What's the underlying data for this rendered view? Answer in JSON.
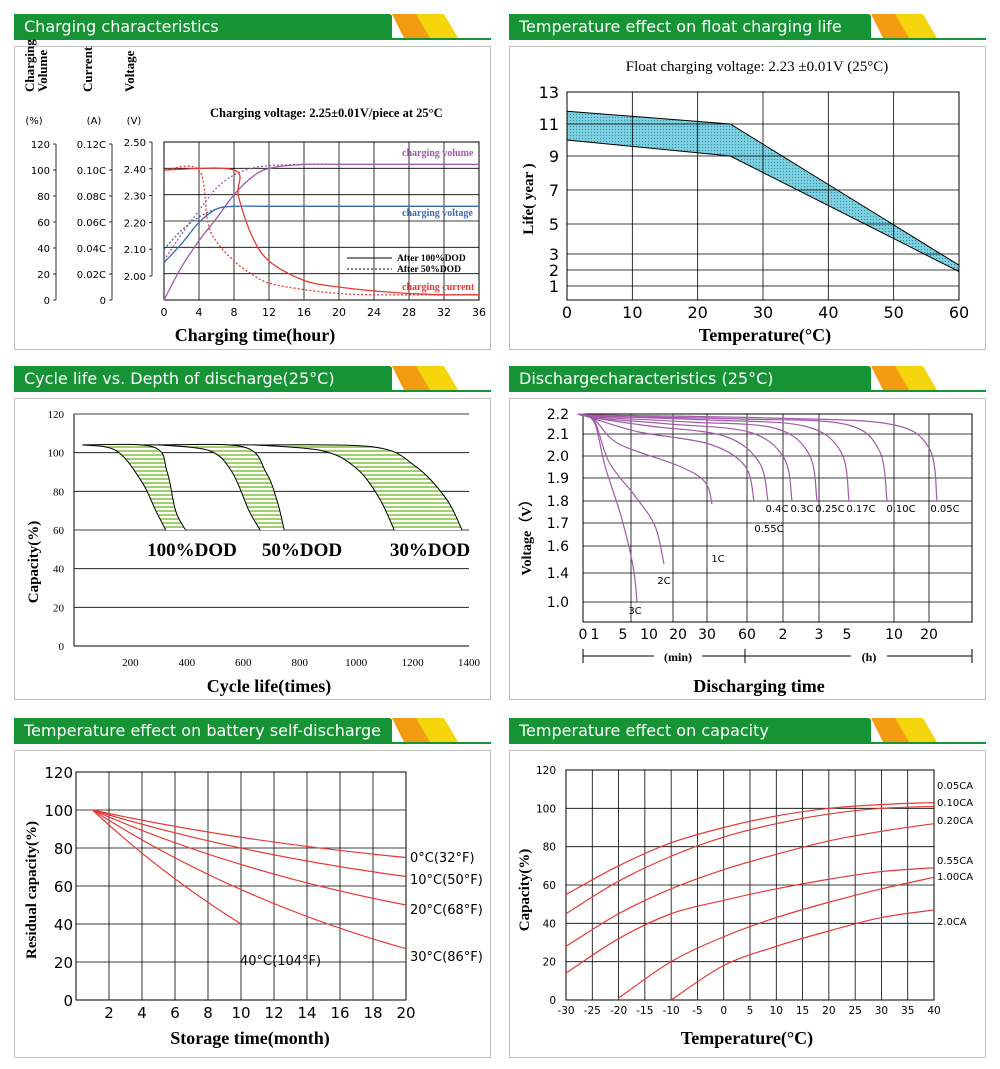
{
  "panels": [
    {
      "id": "p1",
      "title": "Charging characteristics"
    },
    {
      "id": "p2",
      "title": "Temperature effect on float charging life"
    },
    {
      "id": "p3",
      "title": "Cycle life vs. Depth of discharge(25°C)"
    },
    {
      "id": "p4",
      "title": "Dischargecharacteristics (25°C)"
    },
    {
      "id": "p5",
      "title": "Temperature effect on battery self-discharge"
    },
    {
      "id": "p6",
      "title": "Temperature effect on capacity"
    }
  ],
  "colors": {
    "header_green": "#169334",
    "accent_orange": "#f39c12",
    "accent_yellow": "#f6d50c",
    "curve_red": "#e53935",
    "curve_purple": "#a05aa8",
    "curve_blue": "#3a6db5",
    "band_cyan": "#7fd0e0",
    "band_green": "#8bc34a"
  },
  "chart_data": [
    {
      "type": "line",
      "title": "Charging voltage:  2.25±0.01V/piece at 25°C",
      "xlabel": "Charging time(hour)",
      "ylabel_groups": [
        {
          "label": "Charging Volume",
          "unit": "(%)",
          "ticks": [
            "120",
            "100",
            "80",
            "60",
            "40",
            "20",
            "0"
          ]
        },
        {
          "label": "Current",
          "unit": "(A)",
          "ticks": [
            "0.12C",
            "0.10C",
            "0.08C",
            "0.06C",
            "0.04C",
            "0.02C",
            "0"
          ]
        },
        {
          "label": "Voltage",
          "unit": "(V)",
          "ticks": [
            "2.50",
            "2.40",
            "2.30",
            "2.20",
            "2.10",
            "2.00"
          ]
        }
      ],
      "x_ticks": [
        "0",
        "4",
        "8",
        "12",
        "16",
        "20",
        "24",
        "28",
        "32",
        "36"
      ],
      "xlim": [
        0,
        36
      ],
      "series_labels": {
        "volume": "charging volume",
        "voltage": "charging voltage",
        "current": "charging current"
      },
      "legend": [
        "After 100%DOD",
        "After 50%DOD"
      ],
      "series": [
        {
          "name": "charging volume",
          "dod": "100%",
          "x": [
            0,
            2,
            4,
            6,
            8,
            10,
            12,
            16,
            20,
            24,
            28,
            32,
            36
          ],
          "y": [
            0,
            25,
            45,
            62,
            80,
            93,
            100,
            103,
            103,
            103,
            103,
            103,
            103
          ]
        },
        {
          "name": "charging volume",
          "dod": "50%",
          "x": [
            0,
            2,
            4,
            6,
            8,
            10,
            12,
            16,
            20,
            24,
            28,
            32,
            36
          ],
          "y": [
            30,
            50,
            68,
            85,
            95,
            100,
            102,
            103,
            103,
            103,
            103,
            103,
            103
          ]
        },
        {
          "name": "charging voltage",
          "dod": "100%",
          "x": [
            0,
            2,
            4,
            6,
            8,
            12,
            16,
            20,
            24,
            28,
            32,
            36
          ],
          "y": [
            2.05,
            2.12,
            2.2,
            2.25,
            2.26,
            2.26,
            2.26,
            2.26,
            2.26,
            2.26,
            2.26,
            2.26
          ]
        },
        {
          "name": "charging voltage",
          "dod": "50%",
          "x": [
            0,
            2,
            4,
            6,
            8,
            12,
            16,
            20,
            24,
            28,
            32,
            36
          ],
          "y": [
            2.1,
            2.17,
            2.22,
            2.25,
            2.26,
            2.26,
            2.26,
            2.26,
            2.26,
            2.26,
            2.26,
            2.26
          ]
        },
        {
          "name": "charging current",
          "dod": "100%",
          "x": [
            0,
            8,
            8.5,
            10,
            12,
            16,
            20,
            24,
            28,
            32,
            36
          ],
          "y": [
            0.1,
            0.1,
            0.08,
            0.05,
            0.03,
            0.015,
            0.01,
            0.007,
            0.005,
            0.004,
            0.004
          ]
        },
        {
          "name": "charging current",
          "dod": "50%",
          "x": [
            0,
            4,
            5,
            6,
            8,
            10,
            12,
            16,
            20,
            24,
            28,
            32,
            36
          ],
          "y": [
            0.1,
            0.1,
            0.06,
            0.045,
            0.03,
            0.02,
            0.013,
            0.008,
            0.005,
            0.004,
            0.004,
            0.004,
            0.004
          ]
        }
      ]
    },
    {
      "type": "area",
      "title": "Float charging voltage:  2.23 ±0.01V (25°C)",
      "xlabel": "Temperature(°C)",
      "ylabel": "Life( year )",
      "x_ticks": [
        "0",
        "10",
        "20",
        "30",
        "40",
        "50",
        "60"
      ],
      "y_ticks": [
        "13",
        "11",
        "9",
        "7",
        "5",
        "3",
        "2",
        "1"
      ],
      "xlim": [
        0,
        60
      ],
      "ylim": [
        0,
        13
      ],
      "band": {
        "x": [
          0,
          25,
          60
        ],
        "upper": [
          11.8,
          11.0,
          2.3
        ],
        "lower": [
          10.0,
          9.0,
          1.9
        ]
      }
    },
    {
      "type": "area",
      "xlabel": "Cycle life(times)",
      "ylabel": "Capacity(%)",
      "x_ticks": [
        "200",
        "400",
        "600",
        "800",
        "1000",
        "1200",
        "1400"
      ],
      "y_ticks": [
        "120",
        "100",
        "80",
        "60",
        "40",
        "20",
        "0"
      ],
      "xlim": [
        0,
        1400
      ],
      "ylim": [
        0,
        120
      ],
      "annotations": [
        "100%DOD",
        "50%DOD",
        "30%DOD"
      ],
      "bands": [
        {
          "name": "100%DOD",
          "start": [
            220,
            104
          ],
          "outer": [
            [
              30,
              104
            ],
            [
              280,
              103
            ],
            [
              330,
              90
            ],
            [
              360,
              70
            ],
            [
              395,
              60
            ]
          ],
          "inner": [
            [
              30,
              104
            ],
            [
              150,
              101
            ],
            [
              240,
              85
            ],
            [
              290,
              70
            ],
            [
              325,
              60
            ]
          ]
        },
        {
          "name": "50%DOD",
          "start": [
            560,
            104
          ],
          "outer": [
            [
              300,
              104
            ],
            [
              600,
              103
            ],
            [
              680,
              90
            ],
            [
              720,
              75
            ],
            [
              745,
              60
            ]
          ],
          "inner": [
            [
              300,
              104
            ],
            [
              480,
              101
            ],
            [
              560,
              90
            ],
            [
              620,
              70
            ],
            [
              660,
              60
            ]
          ]
        },
        {
          "name": "30%DOD",
          "start": [
            930,
            104
          ],
          "outer": [
            [
              640,
              104
            ],
            [
              1060,
              103
            ],
            [
              1210,
              93
            ],
            [
              1320,
              76
            ],
            [
              1375,
              60
            ]
          ],
          "inner": [
            [
              640,
              104
            ],
            [
              880,
              101
            ],
            [
              1000,
              92
            ],
            [
              1080,
              77
            ],
            [
              1135,
              60
            ]
          ]
        }
      ]
    },
    {
      "type": "line",
      "xlabel": "Discharging time",
      "ylabel": "Voltage（V）",
      "x_ticks": [
        "0",
        "1",
        "5",
        "10",
        "20",
        "30",
        "60",
        "2",
        "3",
        "5",
        "10",
        "20"
      ],
      "x_units": [
        "(min)",
        "(h)"
      ],
      "y_ticks": [
        "2.2",
        "2.1",
        "2.0",
        "1.9",
        "1.8",
        "1.7",
        "1.6",
        "1.4",
        "1.0"
      ],
      "series": [
        {
          "name": "3C",
          "end_time": "5 min"
        },
        {
          "name": "2C",
          "end_time": "12 min"
        },
        {
          "name": "1C",
          "end_time": "30 min"
        },
        {
          "name": "0.55C",
          "end_time": "~1.4 h"
        },
        {
          "name": "0.4C",
          "end_time": "~1.7 h"
        },
        {
          "name": "0.3C",
          "end_time": "~2.3 h"
        },
        {
          "name": "0.25C",
          "end_time": "~3 h"
        },
        {
          "name": "0.17C",
          "end_time": "~5 h"
        },
        {
          "name": "0.10C",
          "end_time": "10 h"
        },
        {
          "name": "0.05C",
          "end_time": "20 h"
        }
      ]
    },
    {
      "type": "line",
      "xlabel": "Storage time(month)",
      "ylabel": "Residual capacity(%)",
      "x_ticks": [
        "2",
        "4",
        "6",
        "8",
        "10",
        "12",
        "14",
        "16",
        "18",
        "20"
      ],
      "y_ticks": [
        "120",
        "100",
        "80",
        "60",
        "40",
        "20",
        "0"
      ],
      "xlim": [
        0,
        20
      ],
      "ylim": [
        0,
        120
      ],
      "series": [
        {
          "name": "0°C(32°F)",
          "x": [
            1,
            20
          ],
          "y": [
            100,
            75
          ]
        },
        {
          "name": "10°C(50°F)",
          "x": [
            1,
            20
          ],
          "y": [
            100,
            65
          ]
        },
        {
          "name": "20°C(68°F)",
          "x": [
            1,
            20
          ],
          "y": [
            100,
            50
          ]
        },
        {
          "name": "30°C(86°F)",
          "x": [
            1,
            20
          ],
          "y": [
            100,
            27
          ]
        },
        {
          "name": "40°C(104°F)",
          "x": [
            1,
            10
          ],
          "y": [
            100,
            40
          ]
        }
      ]
    },
    {
      "type": "line",
      "xlabel": "Temperature(°C)",
      "ylabel": "Capacity(%)",
      "x_ticks": [
        "-30",
        "-25",
        "-20",
        "-15",
        "-10",
        "-5",
        "0",
        "5",
        "10",
        "15",
        "20",
        "25",
        "30",
        "35",
        "40"
      ],
      "y_ticks": [
        "120",
        "100",
        "80",
        "60",
        "40",
        "20",
        "0"
      ],
      "xlim": [
        -30,
        40
      ],
      "ylim": [
        0,
        120
      ],
      "series": [
        {
          "name": "0.05CA",
          "x": [
            -30,
            -20,
            -10,
            0,
            10,
            20,
            30,
            40
          ],
          "y": [
            55,
            70,
            82,
            90,
            96,
            100,
            102,
            103
          ]
        },
        {
          "name": "0.10CA",
          "x": [
            -30,
            -20,
            -10,
            0,
            10,
            20,
            30,
            40
          ],
          "y": [
            45,
            62,
            75,
            85,
            92,
            97,
            100,
            101
          ]
        },
        {
          "name": "0.20CA",
          "x": [
            -30,
            -20,
            -10,
            0,
            10,
            20,
            30,
            40
          ],
          "y": [
            28,
            45,
            58,
            68,
            76,
            83,
            88,
            92
          ]
        },
        {
          "name": "0.55CA",
          "x": [
            -30,
            -20,
            -10,
            0,
            10,
            20,
            30,
            40
          ],
          "y": [
            14,
            32,
            45,
            52,
            58,
            63,
            67,
            69
          ]
        },
        {
          "name": "1.00CA",
          "x": [
            -20,
            -10,
            0,
            10,
            20,
            30,
            40
          ],
          "y": [
            1,
            20,
            33,
            43,
            51,
            58,
            64
          ]
        },
        {
          "name": "2.0CA",
          "x": [
            -10,
            0,
            10,
            20,
            30,
            40
          ],
          "y": [
            0,
            18,
            28,
            36,
            43,
            47
          ]
        }
      ]
    }
  ]
}
